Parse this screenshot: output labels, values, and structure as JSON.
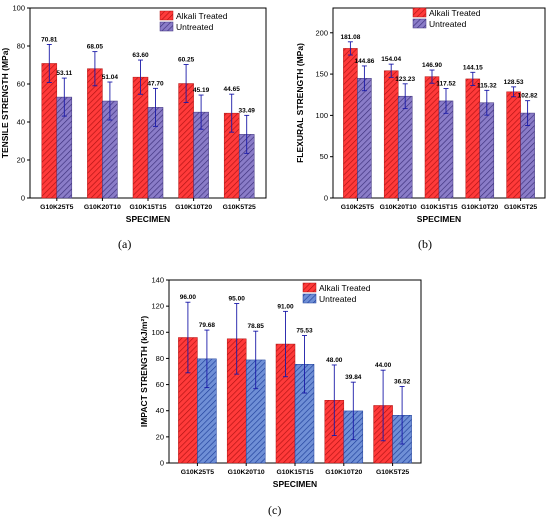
{
  "colors": {
    "alkali": "#ff3a3a",
    "alkali_hatch": "#b01212",
    "untreated": "#8a7cc8",
    "untreated_hatch": "#3b2f7a",
    "untreated_c": "#6f8fd6",
    "untreated_c_hatch": "#1f3f9a",
    "error": "#1a1aa8",
    "axis": "#000000"
  },
  "panel_labels": [
    "(a)",
    "(b)",
    "(c)"
  ],
  "chart_data": [
    {
      "id": "a",
      "type": "bar",
      "title": "",
      "xlabel": "SPECIMEN",
      "ylabel": "TENSILE STRENGTH (MPa)",
      "ylim": [
        0,
        100
      ],
      "yticks": [
        0,
        20,
        40,
        60,
        80,
        100
      ],
      "categories": [
        "G10K25T5",
        "G10K20T10",
        "G10K15T15",
        "G10K10T20",
        "G10K5T25"
      ],
      "legend_position": "top-right",
      "grid": false,
      "series": [
        {
          "name": "Alkali Treated",
          "values": [
            70.81,
            68.05,
            63.6,
            60.25,
            44.65
          ],
          "labels": [
            "70.81",
            "68.05",
            "63.60",
            "60.25",
            "44.65"
          ],
          "errors": [
            10,
            9,
            9,
            10,
            10
          ]
        },
        {
          "name": "Untreated",
          "values": [
            53.11,
            51.04,
            47.7,
            45.19,
            33.49
          ],
          "labels": [
            "53.11",
            "51.04",
            "47.70",
            "45.19",
            "33.49"
          ],
          "errors": [
            10,
            10,
            10,
            9,
            10
          ]
        }
      ]
    },
    {
      "id": "b",
      "type": "bar",
      "title": "",
      "xlabel": "SPECIMEN",
      "ylabel": "FLEXURAL STRENGTH (MPa)",
      "ylim": [
        0,
        230
      ],
      "yticks": [
        0,
        50,
        100,
        150,
        200
      ],
      "categories": [
        "G10K25T5",
        "G10K20T10",
        "G10K15T15",
        "G10K10T20",
        "G10K5T25"
      ],
      "legend_position": "top-right",
      "grid": false,
      "series": [
        {
          "name": "Alkali Treated",
          "values": [
            181.08,
            154.04,
            146.9,
            144.15,
            128.53
          ],
          "labels": [
            "181.08",
            "154.04",
            "146.90",
            "144.15",
            "128.53"
          ],
          "errors": [
            8,
            8,
            8,
            8,
            6
          ]
        },
        {
          "name": "Untreated",
          "values": [
            144.86,
            123.23,
            117.52,
            115.32,
            102.82
          ],
          "labels": [
            "144.86",
            "123.23",
            "117.52",
            "115.32",
            "102.82"
          ],
          "errors": [
            15,
            15,
            15,
            15,
            15
          ]
        }
      ]
    },
    {
      "id": "c",
      "type": "bar",
      "title": "",
      "xlabel": "SPECIMEN",
      "ylabel": "IMPACT STRENGTH (kJ/m²)",
      "ylim": [
        0,
        140
      ],
      "yticks": [
        0,
        20,
        40,
        60,
        80,
        100,
        120,
        140
      ],
      "categories": [
        "G10K25T5",
        "G10K20T10",
        "G10K15T15",
        "G10K10T20",
        "G10K5T25"
      ],
      "legend_position": "top-right",
      "grid": false,
      "series": [
        {
          "name": "Alkali Treated",
          "values": [
            96.0,
            95.0,
            91.0,
            48.0,
            44.0
          ],
          "labels": [
            "96.00",
            "95.00",
            "91.00",
            "48.00",
            "44.00"
          ],
          "errors": [
            27,
            27,
            25,
            27,
            27
          ]
        },
        {
          "name": "Untreated",
          "values": [
            79.68,
            78.85,
            75.53,
            39.84,
            36.52
          ],
          "labels": [
            "79.68",
            "78.85",
            "75.53",
            "39.84",
            "36.52"
          ],
          "errors": [
            22,
            22,
            22,
            22,
            22
          ]
        }
      ]
    }
  ]
}
